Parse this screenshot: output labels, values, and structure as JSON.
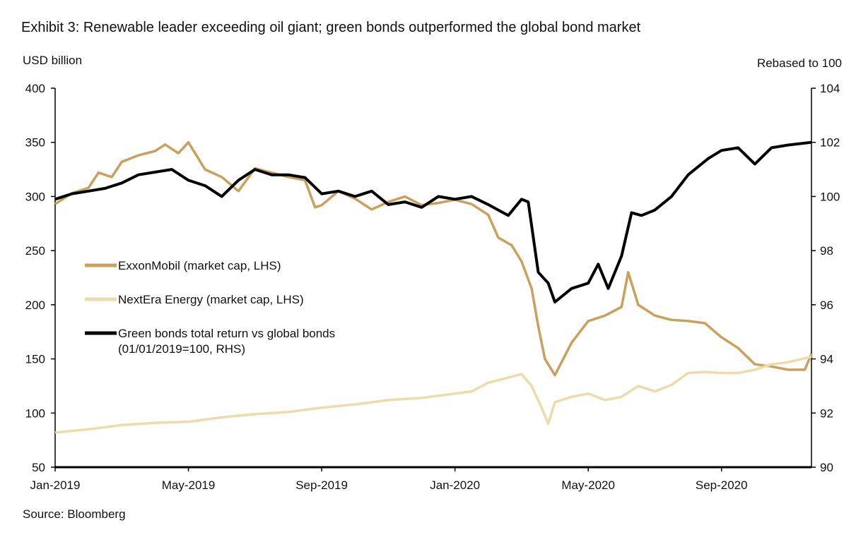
{
  "title": "Exhibit 3: Renewable leader exceeding oil giant; green bonds outperformed the global bond market",
  "source": "Source: Bloomberg",
  "chart_data": {
    "type": "line",
    "title": "Exhibit 3: Renewable leader exceeding oil giant; green bonds outperformed the global bond market",
    "ylabel": "USD billion",
    "y2label": "Rebased to 100",
    "ylim": [
      50,
      400
    ],
    "y2lim": [
      90,
      104
    ],
    "yticks": [
      50,
      100,
      150,
      200,
      250,
      300,
      350,
      400
    ],
    "y2ticks": [
      90,
      92,
      94,
      96,
      98,
      100,
      102,
      104
    ],
    "xlim": [
      0,
      22.7
    ],
    "x_unit": "months since Jan-2019",
    "xticks": [
      {
        "v": 0,
        "label": "Jan-2019"
      },
      {
        "v": 4,
        "label": "May-2019"
      },
      {
        "v": 8,
        "label": "Sep-2019"
      },
      {
        "v": 12,
        "label": "Jan-2020"
      },
      {
        "v": 16,
        "label": "May-2020"
      },
      {
        "v": 20,
        "label": "Sep-2020"
      }
    ],
    "grid": false,
    "legend_position": "center-left",
    "series": [
      {
        "name": "ExxonMobil (market cap, LHS)",
        "axis": "left",
        "color": "#c9a05c",
        "x": [
          0,
          0.5,
          1,
          1.3,
          1.7,
          2,
          2.5,
          3,
          3.3,
          3.7,
          4,
          4.5,
          5,
          5.5,
          6,
          6.5,
          7,
          7.5,
          7.8,
          8,
          8.5,
          9,
          9.5,
          10,
          10.5,
          11,
          11.5,
          12,
          12.5,
          13,
          13.3,
          13.7,
          14,
          14.3,
          14.5,
          14.7,
          15,
          15.5,
          16,
          16.5,
          17,
          17.2,
          17.5,
          18,
          18.5,
          19,
          19.5,
          20,
          20.5,
          21,
          21.5,
          22,
          22.5,
          22.7
        ],
        "y": [
          293,
          303,
          308,
          322,
          318,
          332,
          338,
          342,
          348,
          340,
          350,
          325,
          318,
          305,
          326,
          322,
          318,
          315,
          290,
          292,
          305,
          298,
          288,
          295,
          300,
          292,
          294,
          297,
          293,
          283,
          262,
          255,
          240,
          215,
          180,
          150,
          135,
          165,
          185,
          190,
          198,
          230,
          200,
          190,
          186,
          185,
          183,
          170,
          160,
          145,
          143,
          140,
          140,
          155
        ]
      },
      {
        "name": "NextEra Energy (market cap, LHS)",
        "axis": "left",
        "color": "#eedbab",
        "x": [
          0,
          1,
          2,
          3,
          4,
          5,
          6,
          7,
          8,
          9,
          10,
          11,
          12,
          12.5,
          13,
          13.5,
          14,
          14.3,
          14.6,
          14.8,
          15,
          15.5,
          16,
          16.5,
          17,
          17.5,
          18,
          18.5,
          19,
          19.5,
          20,
          20.5,
          21,
          21.5,
          22,
          22.7
        ],
        "y": [
          82,
          85,
          89,
          91,
          92,
          96,
          99,
          101,
          105,
          108,
          112,
          114,
          118,
          120,
          128,
          132,
          136,
          125,
          105,
          90,
          110,
          115,
          118,
          112,
          115,
          125,
          120,
          126,
          137,
          138,
          137,
          137,
          140,
          145,
          147,
          152
        ]
      },
      {
        "name": "Green bonds total return vs global bonds (01/01/2019=100, RHS)",
        "axis": "right",
        "color": "#000000",
        "x": [
          0,
          0.5,
          1,
          1.5,
          2,
          2.5,
          3,
          3.5,
          4,
          4.5,
          5,
          5.5,
          6,
          6.5,
          7,
          7.5,
          8,
          8.5,
          9,
          9.5,
          10,
          10.5,
          11,
          11.5,
          12,
          12.5,
          13,
          13.3,
          13.6,
          14,
          14.2,
          14.5,
          14.8,
          15,
          15.5,
          16,
          16.3,
          16.6,
          17,
          17.3,
          17.6,
          18,
          18.5,
          19,
          19.3,
          19.6,
          20,
          20.5,
          21,
          21.5,
          22,
          22.7
        ],
        "y": [
          99.9,
          100.1,
          100.2,
          100.3,
          100.5,
          100.8,
          100.9,
          101.0,
          100.6,
          100.4,
          100.0,
          100.6,
          101.0,
          100.8,
          100.8,
          100.7,
          100.1,
          100.2,
          100.0,
          100.2,
          99.7,
          99.8,
          99.6,
          100.0,
          99.9,
          100.0,
          99.7,
          99.5,
          99.3,
          99.9,
          99.8,
          97.2,
          96.8,
          96.1,
          96.6,
          96.8,
          97.5,
          96.6,
          97.8,
          99.4,
          99.3,
          99.5,
          100.0,
          100.8,
          101.1,
          101.4,
          101.7,
          101.8,
          101.2,
          101.8,
          101.9,
          102.0
        ]
      }
    ]
  }
}
